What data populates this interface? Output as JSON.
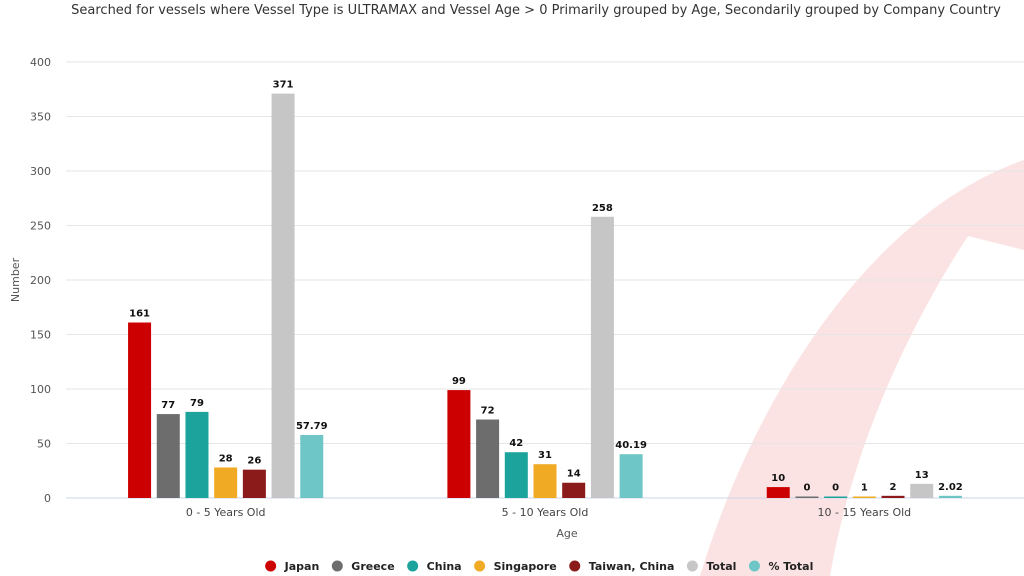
{
  "chart_data": {
    "type": "bar",
    "title": "Searched for vessels where Vessel Type is ULTRAMAX and Vessel Age > 0 Primarily grouped by Age, Secondarily grouped by Company Country",
    "xlabel": "Age",
    "ylabel": "Number",
    "ylim": [
      0,
      400
    ],
    "yticks": [
      0,
      50,
      100,
      150,
      200,
      250,
      300,
      350,
      400
    ],
    "categories": [
      "0 - 5 Years Old",
      "5 - 10 Years Old",
      "10 - 15 Years Old"
    ],
    "series": [
      {
        "name": "Japan",
        "color": "#cc0000",
        "values": [
          161,
          99,
          10
        ],
        "labels": [
          "161",
          "99",
          "10"
        ]
      },
      {
        "name": "Greece",
        "color": "#6d6d6d",
        "values": [
          77,
          72,
          0
        ],
        "labels": [
          "77",
          "72",
          "0"
        ]
      },
      {
        "name": "China",
        "color": "#1ba39c",
        "values": [
          79,
          42,
          0
        ],
        "labels": [
          "79",
          "42",
          "0"
        ]
      },
      {
        "name": "Singapore",
        "color": "#f0aa24",
        "values": [
          28,
          31,
          1
        ],
        "labels": [
          "28",
          "31",
          "1"
        ]
      },
      {
        "name": "Taiwan, China",
        "color": "#8b1a1a",
        "values": [
          26,
          14,
          2
        ],
        "labels": [
          "26",
          "14",
          "2"
        ]
      },
      {
        "name": "Total",
        "color": "#c6c6c6",
        "values": [
          371,
          258,
          13
        ],
        "labels": [
          "371",
          "258",
          "13"
        ]
      },
      {
        "name": "% Total",
        "color": "#6fc6c6",
        "values": [
          57.79,
          40.19,
          2.02
        ],
        "labels": [
          "57.79",
          "40.19",
          "2.02"
        ]
      }
    ],
    "grid": true,
    "legend_position": "bottom"
  },
  "watermark_color": "#fbe3e3"
}
